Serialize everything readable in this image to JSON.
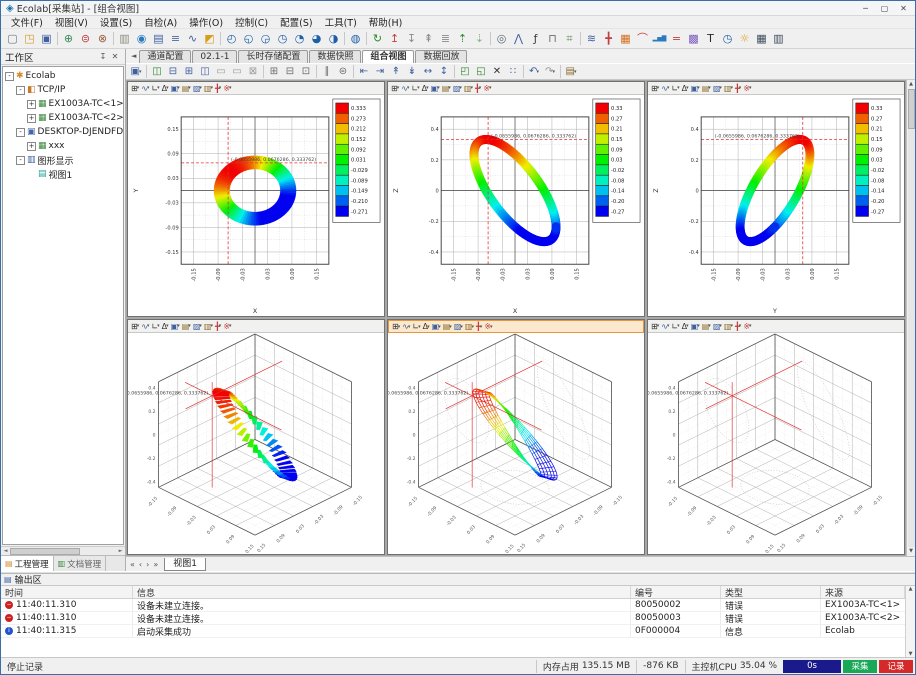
{
  "window": {
    "title": "Ecolab[采集站] - [组合视图]",
    "app_icon": "◈",
    "controls": [
      {
        "name": "minimize",
        "glyph": "─"
      },
      {
        "name": "maximize",
        "glyph": "▢"
      },
      {
        "name": "close",
        "glyph": "✕"
      }
    ]
  },
  "menu_bar": [
    "文件(F)",
    "视图(V)",
    "设置(S)",
    "自检(A)",
    "操作(O)",
    "控制(C)",
    "配置(S)",
    "工具(T)",
    "帮助(H)"
  ],
  "toolbar_main": [
    {
      "name": "new-project",
      "glyph": "▢",
      "color": "#6a7a8a"
    },
    {
      "name": "open-project",
      "glyph": "◳",
      "color": "#d49a2a"
    },
    {
      "name": "save-project",
      "glyph": "▣",
      "color": "#3f5f9f"
    },
    {
      "sep": true
    },
    {
      "name": "add-device",
      "glyph": "⊕",
      "color": "#3a8a5a"
    },
    {
      "name": "device-warning",
      "glyph": "⊜",
      "color": "#c04040"
    },
    {
      "name": "remove-device",
      "glyph": "⊗",
      "color": "#9a5a3a"
    },
    {
      "sep": true
    },
    {
      "name": "copy-view",
      "glyph": "▥",
      "color": "#8a8a7a"
    },
    {
      "name": "color-sphere",
      "glyph": "◉",
      "color": "#2a7ac0"
    },
    {
      "name": "channel-config",
      "glyph": "▤",
      "color": "#3f5f9f"
    },
    {
      "name": "parameter-list",
      "glyph": "≡",
      "color": "#4a6a9a"
    },
    {
      "name": "signal-wave",
      "glyph": "∿",
      "color": "#3f5f9f"
    },
    {
      "name": "warning-panel",
      "glyph": "◩",
      "color": "#d4a017"
    },
    {
      "sep": true
    },
    {
      "name": "gauge-1",
      "glyph": "◴",
      "color": "#1b5fa8"
    },
    {
      "name": "gauge-2",
      "glyph": "◵",
      "color": "#1b5fa8"
    },
    {
      "name": "gauge-3",
      "glyph": "◶",
      "color": "#1b5fa8"
    },
    {
      "name": "gauge-4",
      "glyph": "◷",
      "color": "#1b5fa8"
    },
    {
      "name": "gauge-5",
      "glyph": "◔",
      "color": "#1b5fa8"
    },
    {
      "name": "gauge-6",
      "glyph": "◕",
      "color": "#1b5fa8"
    },
    {
      "name": "gauge-7",
      "glyph": "◑",
      "color": "#1b5fa8"
    },
    {
      "sep": true
    },
    {
      "name": "gauge-lock",
      "glyph": "◍",
      "color": "#1b5fa8"
    },
    {
      "sep": true
    },
    {
      "name": "refresh",
      "glyph": "↻",
      "color": "#2a8a2a"
    },
    {
      "name": "arrow-up-red",
      "glyph": "↥",
      "color": "#c04040"
    },
    {
      "name": "arrow-down",
      "glyph": "↧",
      "color": "#8a8a8a"
    },
    {
      "name": "page-up",
      "glyph": "⇞",
      "color": "#8a8a8a"
    },
    {
      "name": "level-list",
      "glyph": "≣",
      "color": "#8a8a8a"
    },
    {
      "name": "export-up",
      "glyph": "⇡",
      "color": "#2a8a2a"
    },
    {
      "name": "export-down",
      "glyph": "⇣",
      "color": "#8ab48a"
    },
    {
      "sep": true
    },
    {
      "name": "search-zoom",
      "glyph": "◎",
      "color": "#5a6a7a"
    },
    {
      "name": "double-up",
      "glyph": "⋀",
      "color": "#3f5f9f"
    },
    {
      "name": "function-fx",
      "glyph": "ƒ",
      "color": "#3a3a3a"
    },
    {
      "name": "step-signal",
      "glyph": "⊓",
      "color": "#6a6a6a"
    },
    {
      "name": "gp-tool",
      "glyph": "⌗",
      "color": "#5a8a5a"
    },
    {
      "sep": true
    },
    {
      "name": "spectrum-waves",
      "glyph": "≋",
      "color": "#3f5f9f"
    },
    {
      "name": "move-cross",
      "glyph": "╋",
      "color": "#c04040"
    },
    {
      "name": "grid-orange",
      "glyph": "▦",
      "color": "#d46a1a"
    },
    {
      "name": "curve-tool",
      "glyph": "⌒",
      "color": "#c04040"
    },
    {
      "name": "bar-chart",
      "glyph": "▂▅▇",
      "color": "#2a7ac0"
    },
    {
      "name": "dual-line",
      "glyph": "=",
      "color": "#c04040"
    },
    {
      "name": "grid-color",
      "glyph": "▩",
      "color": "#7a5ac0"
    },
    {
      "name": "text-label",
      "glyph": "T",
      "color": "#2a2a2a"
    },
    {
      "name": "clock",
      "glyph": "◷",
      "color": "#1b5fa8"
    },
    {
      "name": "brightness",
      "glyph": "☼",
      "color": "#e0a020"
    },
    {
      "name": "data-grid",
      "glyph": "▦",
      "color": "#3a4a5a"
    },
    {
      "name": "data-grid-alt",
      "glyph": "▥",
      "color": "#3a4a5a"
    }
  ],
  "sidebar": {
    "title": "工作区",
    "pin_glyph": "↧",
    "close_glyph": "✕",
    "tree": [
      {
        "label": "Ecolab",
        "depth": 0,
        "exp": "-",
        "glyph": "✱",
        "color": "#d4882a"
      },
      {
        "label": "TCP/IP",
        "depth": 1,
        "exp": "-",
        "glyph": "◧",
        "color": "#c87a2a"
      },
      {
        "label": "EX1003A-TC<1>",
        "depth": 2,
        "exp": "+",
        "glyph": "▦",
        "color": "#3a8a3a"
      },
      {
        "label": "EX1003A-TC<2>",
        "depth": 2,
        "exp": "+",
        "glyph": "▦",
        "color": "#3a8a3a"
      },
      {
        "label": "DESKTOP-DJENDFD=Calculated",
        "depth": 1,
        "exp": "-",
        "glyph": "▣",
        "color": "#4466aa"
      },
      {
        "label": "xxx",
        "depth": 2,
        "exp": "+",
        "glyph": "▦",
        "color": "#3a8a3a"
      },
      {
        "label": "图形显示",
        "depth": 1,
        "exp": "-",
        "glyph": "▥",
        "color": "#3f5f9f"
      },
      {
        "label": "视图1",
        "depth": 2,
        "exp": "",
        "glyph": "▤",
        "color": "#2aa198"
      }
    ],
    "tabs": [
      {
        "label": "工程管理",
        "glyph": "▤",
        "color": "#d4882a",
        "active": true
      },
      {
        "label": "文档管理",
        "glyph": "▥",
        "color": "#3a8a3a",
        "active": false
      }
    ]
  },
  "doc_tabs": {
    "nav_left": "◄",
    "items": [
      {
        "label": "通道配置"
      },
      {
        "label": "02.1-1"
      },
      {
        "label": "长时存储配置"
      },
      {
        "label": "数据快照"
      },
      {
        "label": "组合视图",
        "active": true
      },
      {
        "label": "数据回放"
      }
    ]
  },
  "view_toolbar": [
    {
      "name": "window-layout",
      "glyph": "▣",
      "color": "#3f5f9f",
      "caret": true
    },
    {
      "sep": true
    },
    {
      "name": "tile-horizontal",
      "glyph": "◫",
      "color": "#2a8a2a"
    },
    {
      "name": "tile-vertical",
      "glyph": "⊟",
      "color": "#3f5f9f"
    },
    {
      "name": "tile-grid",
      "glyph": "⊞",
      "color": "#3f5f9f"
    },
    {
      "name": "tile-custom",
      "glyph": "◫",
      "color": "#3f5f9f"
    },
    {
      "name": "window-a",
      "glyph": "▭",
      "color": "#9a9a9a"
    },
    {
      "name": "window-b",
      "glyph": "▭",
      "color": "#9a9a9a"
    },
    {
      "name": "window-close",
      "glyph": "⊠",
      "color": "#9a9a9a"
    },
    {
      "sep": true
    },
    {
      "name": "add-pane",
      "glyph": "⊞",
      "color": "#6a6a6a"
    },
    {
      "name": "remove-pane",
      "glyph": "⊟",
      "color": "#6a6a6a"
    },
    {
      "name": "single-pane",
      "glyph": "⊡",
      "color": "#6a6a6a"
    },
    {
      "sep": true
    },
    {
      "name": "split-pane",
      "glyph": "∥",
      "color": "#6a6a6a"
    },
    {
      "name": "merge-pane",
      "glyph": "⊜",
      "color": "#6a6a6a"
    },
    {
      "sep": true
    },
    {
      "name": "align-left",
      "glyph": "⇤",
      "color": "#3f5f9f"
    },
    {
      "name": "align-right",
      "glyph": "⇥",
      "color": "#3f5f9f"
    },
    {
      "name": "align-top",
      "glyph": "↟",
      "color": "#3f5f9f"
    },
    {
      "name": "align-bottom",
      "glyph": "↡",
      "color": "#3f5f9f"
    },
    {
      "name": "distribute-h",
      "glyph": "↔",
      "color": "#3f5f9f"
    },
    {
      "name": "distribute-v",
      "glyph": "↕",
      "color": "#3f5f9f"
    },
    {
      "sep": true
    },
    {
      "name": "expand-view",
      "glyph": "◰",
      "color": "#2a8a2a"
    },
    {
      "name": "shrink-view",
      "glyph": "◱",
      "color": "#2a8a2a"
    },
    {
      "name": "close-view",
      "glyph": "✕",
      "color": "#333333"
    },
    {
      "name": "grid-dots",
      "glyph": "∷",
      "color": "#3f5f9f"
    },
    {
      "sep": true
    },
    {
      "name": "undo",
      "glyph": "↶",
      "color": "#3f5f9f",
      "caret": true
    },
    {
      "name": "redo",
      "glyph": "↷",
      "color": "#9a9a9a",
      "caret": true
    },
    {
      "sep": true
    },
    {
      "name": "export-view",
      "glyph": "▤",
      "color": "#8a6a2a",
      "caret": true
    }
  ],
  "panel_toolbar": {
    "buttons": [
      {
        "name": "grid-mode",
        "glyph": "⊞",
        "color": "#333333"
      },
      {
        "name": "signal-mode",
        "glyph": "∿",
        "color": "#3f5f9f"
      },
      {
        "name": "axis-mode",
        "glyph": "∟",
        "color": "#333333"
      },
      {
        "name": "cursor-mode",
        "glyph": "Δ",
        "color": "#333333"
      },
      {
        "name": "layout-a",
        "glyph": "▣",
        "color": "#3f5f9f"
      },
      {
        "name": "layout-b",
        "glyph": "▤",
        "color": "#8a6a2a"
      },
      {
        "name": "layout-c",
        "glyph": "▨",
        "color": "#3f5f9f"
      },
      {
        "name": "layout-d",
        "glyph": "▥",
        "color": "#8a6a2a"
      },
      {
        "name": "cross-tool",
        "glyph": "╋",
        "color": "#c04040"
      },
      {
        "name": "tools-misc",
        "glyph": "※",
        "color": "#c04040"
      }
    ],
    "caret": "▾"
  },
  "bottom_tabs": {
    "nav": [
      "«",
      "‹",
      "›",
      "»"
    ],
    "tab": "视图1"
  },
  "output": {
    "title": "输出区",
    "title_glyph": "▤",
    "columns": [
      "时间",
      "信息",
      "编号",
      "类型",
      "来源"
    ],
    "rows": [
      {
        "icon": "error",
        "icon_glyph": "−",
        "time": "11:40:11.310",
        "info": "设备未建立连接。",
        "code": "80050002",
        "type": "错误",
        "source": "EX1003A-TC<1>"
      },
      {
        "icon": "error",
        "icon_glyph": "−",
        "time": "11:40:11.310",
        "info": "设备未建立连接。",
        "code": "80050003",
        "type": "错误",
        "source": "EX1003A-TC<2>"
      },
      {
        "icon": "info",
        "icon_glyph": "i",
        "time": "11:40:11.315",
        "info": "启动采集成功",
        "code": "0F000004",
        "type": "信息",
        "source": "Ecolab"
      }
    ]
  },
  "status_bar": {
    "left": "停止记录",
    "mem_label": "内存占用",
    "mem_value": "135.15 MB",
    "mem_delta": "-876 KB",
    "cpu_label": "主控机CPU",
    "cpu_value": "35.04 %",
    "timer": "0s",
    "acq_label": "采集",
    "rec_label": "记录",
    "acq_color": "#18a858",
    "rec_color": "#d42a2a",
    "timer_color": "#1a1a8c"
  },
  "ui": {
    "caret": "▾",
    "scroll_up": "▲",
    "scroll_down": "▼",
    "scroll_left": "◄",
    "scroll_right": "►"
  },
  "chart_data": [
    {
      "id": "orbit-xy",
      "type": "scatter",
      "projection": "2d",
      "plane": "xy",
      "render": "ring-filled",
      "xlabel": "X",
      "ylabel": "Y",
      "xlim": [
        -0.18,
        0.18
      ],
      "ylim": [
        -0.18,
        0.18
      ],
      "x_ticks": [
        "-0.15",
        "-0.09",
        "-0.03",
        "0.03",
        "0.09",
        "0.15"
      ],
      "y_ticks": [
        "0.15",
        "0.09",
        "0.03",
        "-0.03",
        "-0.09",
        "-0.15"
      ],
      "colorbar": {
        "max": 0.333,
        "min": -0.271,
        "labels": [
          "0.333",
          "0.273",
          "0.212",
          "0.152",
          "0.092",
          "0.031",
          "-0.029",
          "-0.089",
          "-0.149",
          "-0.210",
          "-0.271"
        ]
      },
      "cursor": [
        -0.0655986,
        0.0676286
      ],
      "annotation": "(-0.0655986, 0.0676286, 0.333762)",
      "model": {
        "rx": 0.1,
        "ry": 0.085,
        "z_amp": 0.333,
        "z_phase_deg": 135,
        "inner_ratio": 0.62
      }
    },
    {
      "id": "orbit-xz",
      "type": "scatter",
      "projection": "2d",
      "plane": "xz",
      "render": "band",
      "xlabel": "X",
      "ylabel": "Z",
      "xlim": [
        -0.18,
        0.18
      ],
      "ylim": [
        -0.48,
        0.48
      ],
      "x_ticks": [
        "-0.15",
        "-0.09",
        "-0.03",
        "0.03",
        "0.09",
        "0.15"
      ],
      "y_ticks": [
        "0.4",
        "0.2",
        "0",
        "-0.2",
        "-0.4"
      ],
      "colorbar": {
        "max": 0.33,
        "min": -0.27,
        "labels": [
          "0.33",
          "0.27",
          "0.21",
          "0.15",
          "0.09",
          "0.03",
          "-0.02",
          "-0.08",
          "-0.14",
          "-0.20",
          "-0.27"
        ]
      },
      "cursor": [
        -0.0655986,
        0.333762
      ],
      "annotation": "(-0.0655986, 0.0676286, 0.333762)",
      "model": {
        "rx": 0.1,
        "ry": 0.085,
        "z_amp": 0.333,
        "z_phase_deg": 135,
        "inner_ratio": 0.62
      }
    },
    {
      "id": "orbit-yz",
      "type": "scatter",
      "projection": "2d",
      "plane": "yz",
      "render": "band",
      "xlabel": "Y",
      "ylabel": "Z",
      "xlim": [
        -0.18,
        0.18
      ],
      "ylim": [
        -0.48,
        0.48
      ],
      "x_ticks": [
        "-0.15",
        "-0.09",
        "-0.03",
        "0.03",
        "0.09",
        "0.15"
      ],
      "y_ticks": [
        "0.4",
        "0.2",
        "0",
        "-0.2",
        "-0.4"
      ],
      "colorbar": {
        "max": 0.33,
        "min": -0.27,
        "labels": [
          "0.33",
          "0.27",
          "0.21",
          "0.15",
          "0.09",
          "0.03",
          "-0.02",
          "-0.08",
          "-0.14",
          "-0.20",
          "-0.27"
        ]
      },
      "cursor": [
        0.0676286,
        0.333762
      ],
      "annotation": "(-0.0655986, 0.0676286, 0.333762)",
      "model": {
        "rx": 0.1,
        "ry": 0.085,
        "z_amp": 0.333,
        "z_phase_deg": 135,
        "inner_ratio": 0.62
      }
    },
    {
      "id": "mode-3d-surface",
      "type": "surface3d",
      "projection": "3d",
      "render": "surface",
      "xlabel": "X",
      "ylabel": "Y",
      "zlabel": "Z",
      "xlim": [
        -0.15,
        0.15
      ],
      "ylim": [
        -0.15,
        0.15
      ],
      "zlim": [
        -0.45,
        0.45
      ],
      "x_ticks": [
        "-0.15",
        "-0.09",
        "-0.03",
        "0.03",
        "0.09",
        "0.15"
      ],
      "y_ticks": [
        "-0.15",
        "-0.09",
        "-0.03",
        "0.03",
        "0.09",
        "0.15"
      ],
      "z_ticks": [
        "0.4",
        "0.2",
        "0",
        "-0.2",
        "-0.4"
      ],
      "cursor": [
        -0.0655986,
        0.0676286,
        0.333762
      ],
      "annotation": "(-0.0655986, 0.0676286, 0.333762)",
      "show_projections": false,
      "model": {
        "rx": 0.1,
        "ry": 0.085,
        "z_amp": 0.333,
        "z_phase_deg": 135,
        "inner_ratio": 0.62
      }
    },
    {
      "id": "mode-3d-wireframe",
      "type": "wireframe3d",
      "projection": "3d",
      "render": "wireframe",
      "active": true,
      "xlabel": "X",
      "ylabel": "Y",
      "zlabel": "Z",
      "xlim": [
        -0.15,
        0.15
      ],
      "ylim": [
        -0.15,
        0.15
      ],
      "zlim": [
        -0.45,
        0.45
      ],
      "x_ticks": [
        "-0.15",
        "-0.09",
        "-0.03",
        "0.03",
        "0.09",
        "0.15"
      ],
      "y_ticks": [
        "-0.15",
        "-0.09",
        "-0.03",
        "0.03",
        "0.09",
        "0.15"
      ],
      "z_ticks": [
        "0.4",
        "0.2",
        "0",
        "-0.2",
        "-0.4"
      ],
      "cursor": [
        -0.0655986,
        0.0676286,
        0.333762
      ],
      "annotation": "(-0.0655986, 0.0676286, 0.333762)",
      "show_projections": true,
      "model": {
        "rx": 0.1,
        "ry": 0.085,
        "z_amp": 0.333,
        "z_phase_deg": 135,
        "inner_ratio": 0.62
      }
    },
    {
      "id": "mode-3d-axes",
      "type": "axes3d",
      "projection": "3d",
      "render": "empty",
      "xlabel": "X",
      "ylabel": "Y",
      "zlabel": "Z",
      "xlim": [
        -0.15,
        0.15
      ],
      "ylim": [
        -0.15,
        0.15
      ],
      "zlim": [
        -0.45,
        0.45
      ],
      "x_ticks": [
        "-0.15",
        "-0.09",
        "-0.03",
        "0.03",
        "0.09",
        "0.15"
      ],
      "y_ticks": [
        "-0.15",
        "-0.09",
        "-0.03",
        "0.03",
        "0.09",
        "0.15"
      ],
      "z_ticks": [
        "0.4",
        "0.2",
        "0",
        "-0.2",
        "-0.4"
      ],
      "cursor": [
        -0.0655986,
        0.0676286,
        0.333762
      ],
      "annotation": "(-0.0655986, 0.0676286, 0.333762)",
      "show_projections": true,
      "model": {
        "rx": 0.1,
        "ry": 0.085,
        "z_amp": 0.333,
        "z_phase_deg": 135,
        "inner_ratio": 0.62
      }
    }
  ]
}
